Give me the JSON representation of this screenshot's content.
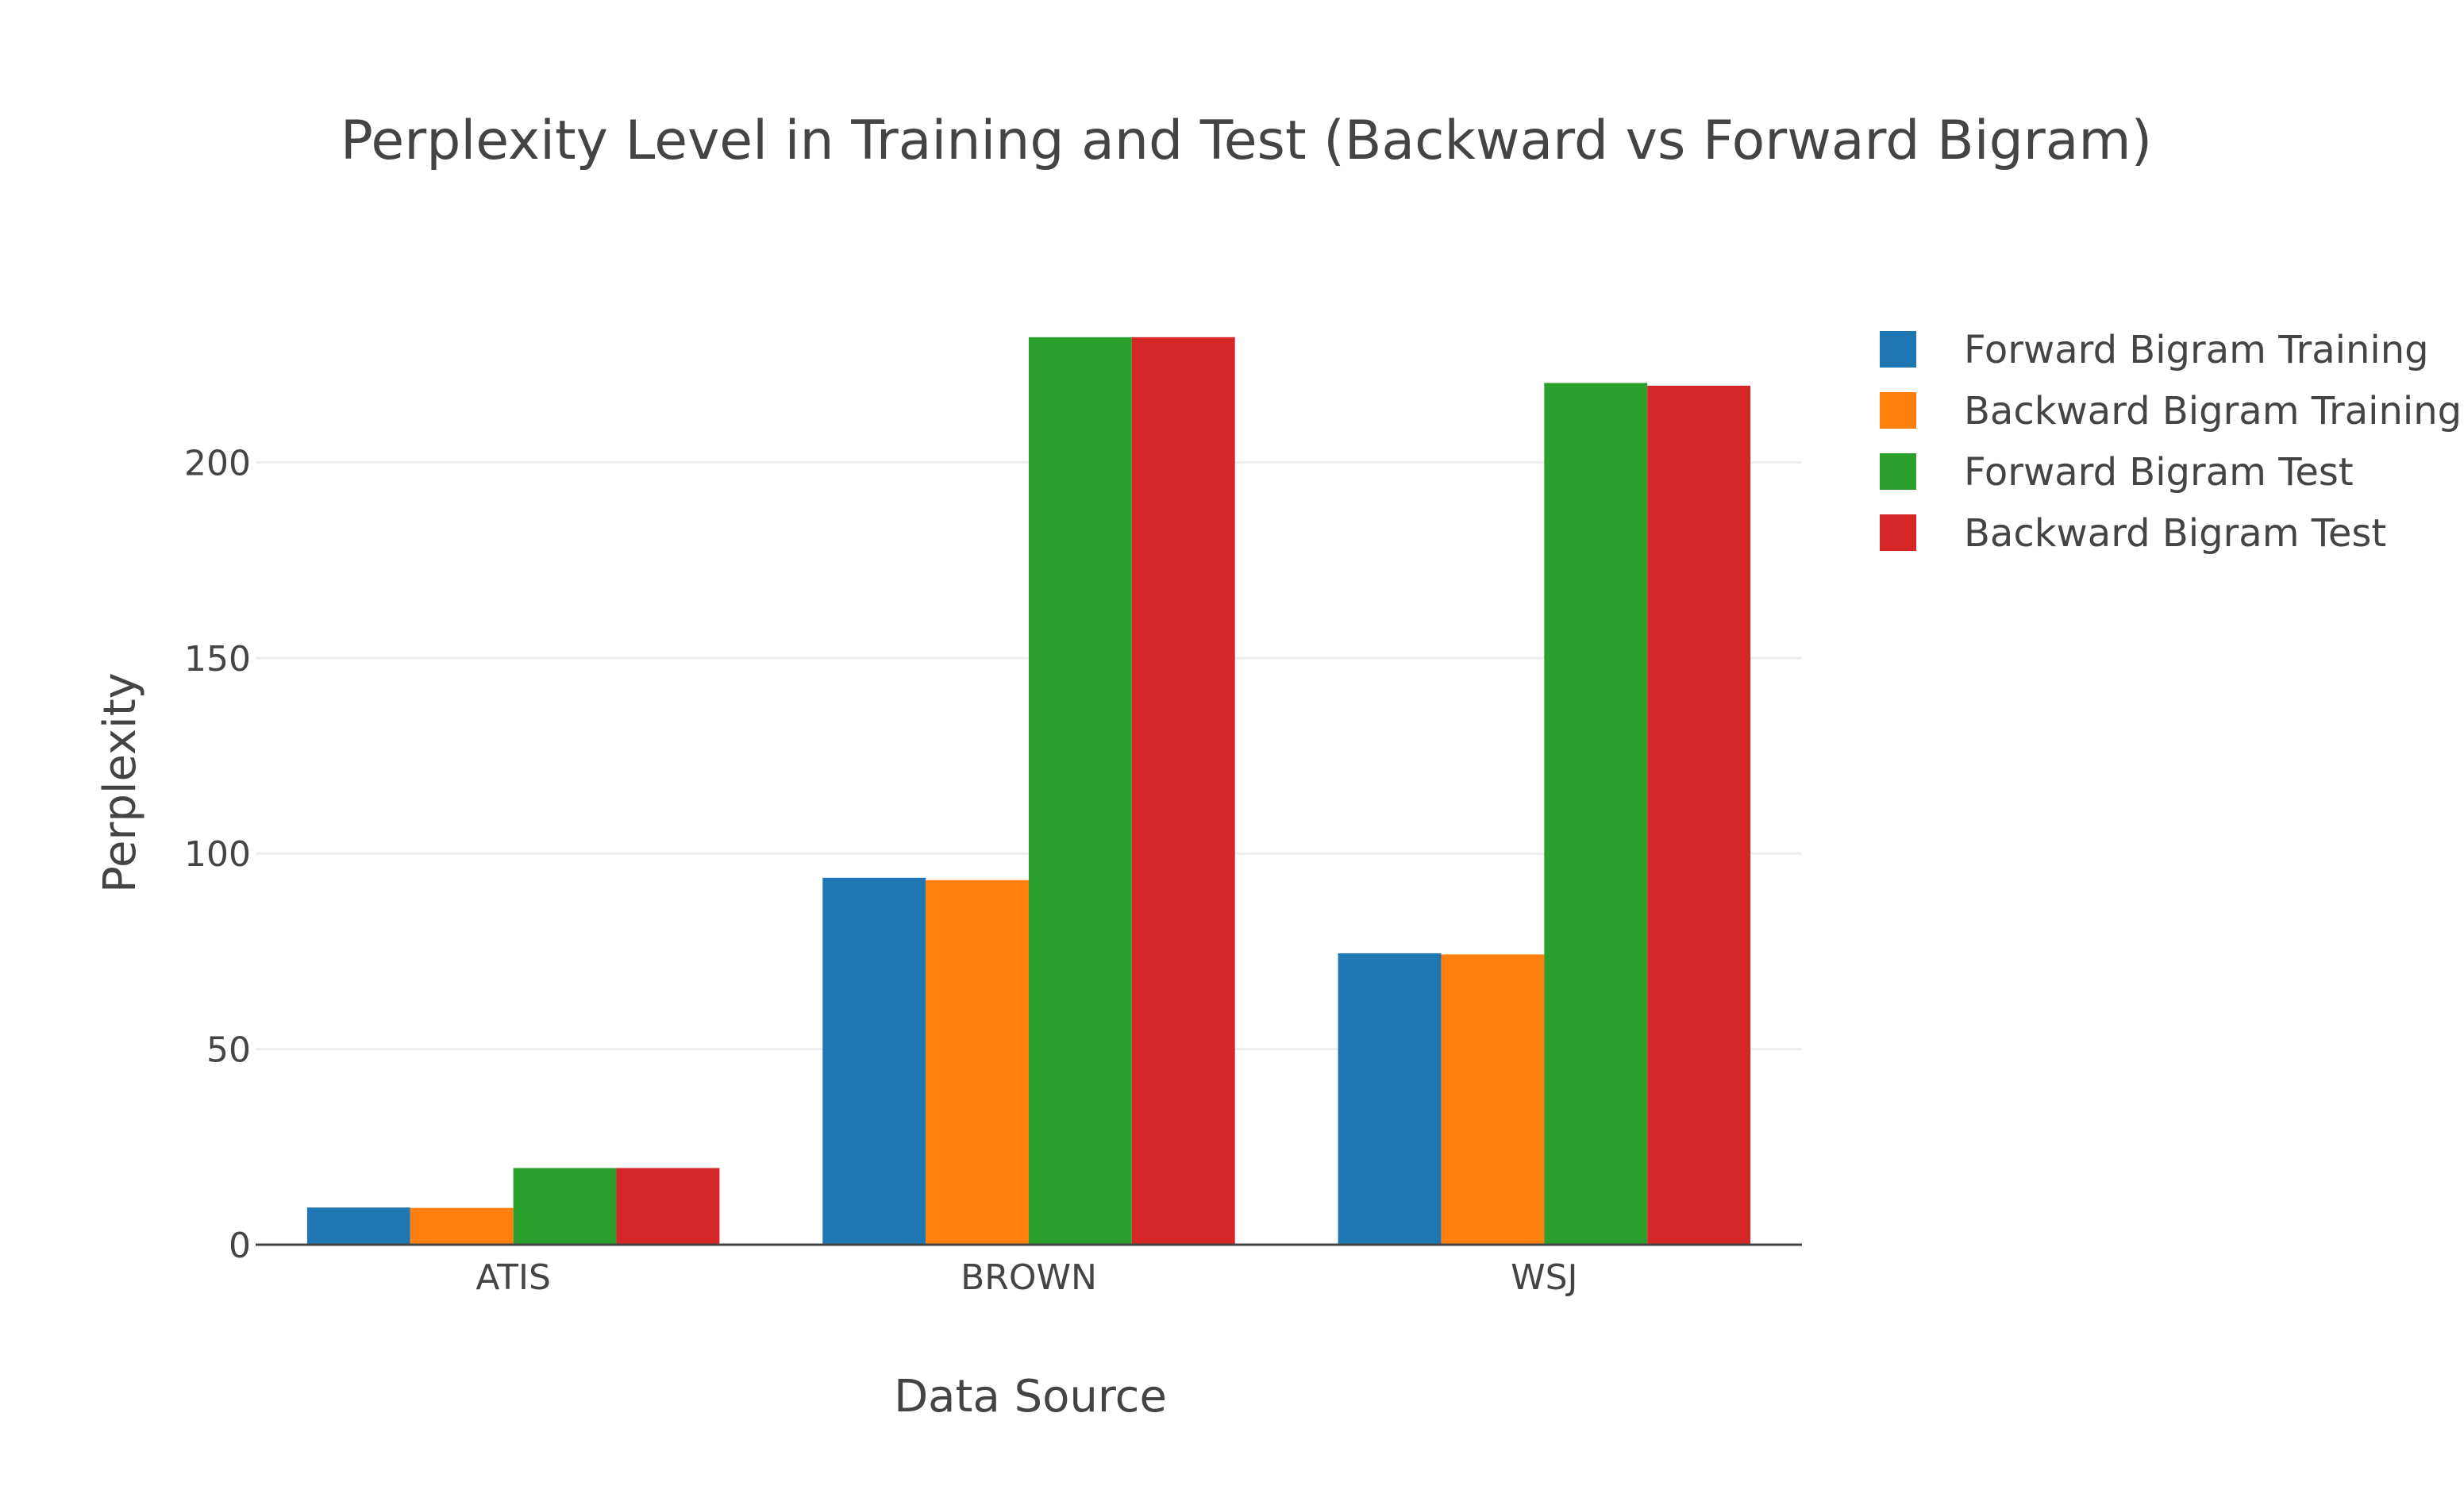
{
  "chart_data": {
    "type": "bar",
    "title": "Perplexity Level in Training and Test (Backward vs Forward Bigram)",
    "xlabel": "Data Source",
    "ylabel": "Perplexity",
    "categories": [
      "ATIS",
      "BROWN",
      "WSJ"
    ],
    "ylim": [
      0,
      235
    ],
    "yticks": [
      0,
      50,
      100,
      150,
      200
    ],
    "grid": true,
    "legend_position": "top-right",
    "series": [
      {
        "name": "Forward Bigram Training",
        "color": "#1f77b4",
        "values": [
          9.5,
          93.8,
          74.5
        ]
      },
      {
        "name": "Backward Bigram Training",
        "color": "#ff7f0e",
        "values": [
          9.4,
          93.2,
          74.2
        ]
      },
      {
        "name": "Forward Bigram Test",
        "color": "#2ca02c",
        "values": [
          19.6,
          232.0,
          220.3
        ]
      },
      {
        "name": "Backward Bigram Test",
        "color": "#d62728",
        "values": [
          19.6,
          232.0,
          219.6
        ]
      }
    ]
  }
}
